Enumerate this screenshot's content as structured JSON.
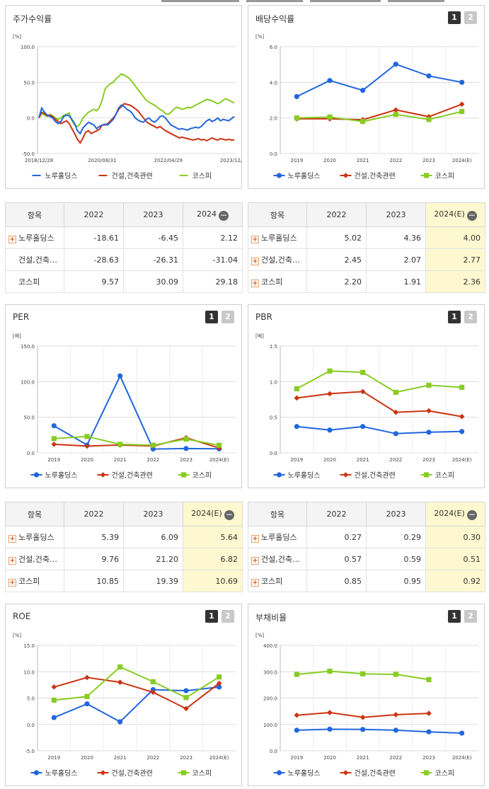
{
  "colors": {
    "s0": "#2266dd",
    "s1": "#cc3311",
    "s2": "#88cc22"
  },
  "markers": [
    "circle",
    "diamond",
    "square"
  ],
  "legend_names": [
    "노루홀딩스",
    "건설,건축관련",
    "코스피"
  ],
  "panel_buttons": [
    "1",
    "2"
  ],
  "tables": {
    "stock_return": {
      "headers": [
        "항목",
        "2022",
        "2023",
        "2024"
      ],
      "rows": [
        {
          "name": "노루홀딩스",
          "v": [
            "-18.61",
            "-6.45",
            "2.12"
          ]
        },
        {
          "name": "건설,건축…",
          "v": [
            "-28.63",
            "-26.31",
            "-31.04"
          ]
        },
        {
          "name": "코스피",
          "v": [
            "9.57",
            "30.09",
            "29.18"
          ]
        }
      ]
    },
    "dividend": {
      "headers": [
        "항목",
        "2022",
        "2023",
        "2024(E)"
      ],
      "rows": [
        {
          "name": "노루홀딩스",
          "v": [
            "5.02",
            "4.36",
            "4.00"
          ]
        },
        {
          "name": "건설,건축…",
          "v": [
            "2.45",
            "2.07",
            "2.77"
          ]
        },
        {
          "name": "코스피",
          "v": [
            "2.20",
            "1.91",
            "2.36"
          ]
        }
      ]
    },
    "per": {
      "headers": [
        "항목",
        "2022",
        "2023",
        "2024(E)"
      ],
      "rows": [
        {
          "name": "노루홀딩스",
          "v": [
            "5.39",
            "6.09",
            "5.64"
          ]
        },
        {
          "name": "건설,건축…",
          "v": [
            "9.76",
            "21.20",
            "6.82"
          ]
        },
        {
          "name": "코스피",
          "v": [
            "10.85",
            "19.39",
            "10.69"
          ]
        }
      ]
    },
    "pbr": {
      "headers": [
        "항목",
        "2022",
        "2023",
        "2024(E)"
      ],
      "rows": [
        {
          "name": "노루홀딩스",
          "v": [
            "0.27",
            "0.29",
            "0.30"
          ]
        },
        {
          "name": "건설,건축…",
          "v": [
            "0.57",
            "0.59",
            "0.51"
          ]
        },
        {
          "name": "코스피",
          "v": [
            "0.85",
            "0.95",
            "0.92"
          ]
        }
      ]
    }
  },
  "chart_data": [
    {
      "id": "stock_return",
      "title": "주가수익률",
      "type": "line",
      "unit": "[%]",
      "ylim": [
        -50,
        100
      ],
      "yticks": [
        "100.0",
        "50.0",
        "0.0",
        "-50.0"
      ],
      "xticks": [
        "2018/12/28",
        "2020/08/31",
        "2022/04/29",
        "2023/12/28"
      ],
      "n": 72,
      "series": [
        {
          "name": "노루홀딩스",
          "values": [
            0,
            14,
            8,
            4,
            2,
            0,
            -5,
            -8,
            -5,
            2,
            4,
            3,
            -2,
            -8,
            -18,
            -22,
            -14,
            -10,
            -6,
            -8,
            -10,
            -15,
            -12,
            -10,
            -9,
            -10,
            -6,
            -2,
            5,
            14,
            18,
            16,
            12,
            10,
            6,
            0,
            -3,
            -5,
            -6,
            -2,
            0,
            -4,
            -6,
            -3,
            2,
            3,
            0,
            -5,
            -10,
            -12,
            -14,
            -16,
            -15,
            -16,
            -17,
            -15,
            -14,
            -13,
            -14,
            -12,
            -8,
            -4,
            -2,
            -5,
            -3,
            0,
            -4,
            -2,
            -3,
            -4,
            -1,
            2
          ]
        },
        {
          "name": "건설,건축관련",
          "values": [
            0,
            8,
            6,
            3,
            4,
            2,
            -2,
            -5,
            -8,
            -6,
            -4,
            -8,
            -15,
            -22,
            -30,
            -35,
            -28,
            -20,
            -18,
            -22,
            -20,
            -18,
            -16,
            -10,
            -10,
            -8,
            -4,
            0,
            5,
            12,
            16,
            20,
            19,
            18,
            16,
            13,
            10,
            5,
            0,
            -5,
            -8,
            -10,
            -12,
            -14,
            -12,
            -15,
            -18,
            -20,
            -22,
            -24,
            -26,
            -28,
            -27,
            -28,
            -29,
            -30,
            -31,
            -30,
            -29,
            -31,
            -30,
            -32,
            -30,
            -28,
            -30,
            -31,
            -29,
            -30,
            -31,
            -30,
            -31,
            -31
          ]
        },
        {
          "name": "코스피",
          "values": [
            0,
            6,
            4,
            2,
            5,
            3,
            0,
            -2,
            0,
            4,
            5,
            7,
            -4,
            -10,
            -12,
            -8,
            0,
            4,
            8,
            10,
            12,
            10,
            15,
            25,
            40,
            45,
            48,
            50,
            55,
            58,
            62,
            60,
            58,
            55,
            50,
            45,
            40,
            35,
            30,
            25,
            22,
            20,
            18,
            15,
            12,
            10,
            6,
            5,
            8,
            12,
            15,
            14,
            12,
            13,
            15,
            14,
            16,
            18,
            20,
            22,
            24,
            26,
            25,
            24,
            22,
            20,
            22,
            25,
            27,
            25,
            23,
            21
          ]
        }
      ]
    },
    {
      "id": "dividend",
      "title": "배당수익률",
      "type": "line",
      "unit": "[%]",
      "ylim": [
        0,
        6
      ],
      "yticks": [
        "6.0",
        "4.0",
        "2.0",
        "0.0"
      ],
      "categories": [
        "2019",
        "2020",
        "2021",
        "2022",
        "2023",
        "2024(E)"
      ],
      "series": [
        {
          "name": "노루홀딩스",
          "values": [
            3.2,
            4.1,
            3.55,
            5.02,
            4.36,
            4.0
          ]
        },
        {
          "name": "건설,건축관련",
          "values": [
            1.95,
            1.95,
            1.9,
            2.45,
            2.07,
            2.77
          ]
        },
        {
          "name": "코스피",
          "values": [
            2.0,
            2.05,
            1.8,
            2.2,
            1.91,
            2.36
          ]
        }
      ]
    },
    {
      "id": "per",
      "title": "PER",
      "type": "line",
      "unit": "[배]",
      "ylim": [
        0,
        150
      ],
      "yticks": [
        "150.0",
        "100.0",
        "50.0",
        "0.0"
      ],
      "categories": [
        "2019",
        "2020",
        "2021",
        "2022",
        "2023",
        "2024(E)"
      ],
      "series": [
        {
          "name": "노루홀딩스",
          "values": [
            38,
            11,
            108,
            5.39,
            6.09,
            5.64
          ]
        },
        {
          "name": "건설,건축관련",
          "values": [
            12,
            9.5,
            11,
            9.76,
            21.2,
            6.82
          ]
        },
        {
          "name": "코스피",
          "values": [
            20,
            23,
            12,
            10.85,
            19.39,
            10.69
          ]
        }
      ]
    },
    {
      "id": "pbr",
      "title": "PBR",
      "type": "line",
      "unit": "[배]",
      "ylim": [
        0,
        1.5
      ],
      "yticks": [
        "1.5",
        "1.0",
        "0.5",
        "0.0"
      ],
      "categories": [
        "2019",
        "2020",
        "2021",
        "2022",
        "2023",
        "2024(E)"
      ],
      "series": [
        {
          "name": "노루홀딩스",
          "values": [
            0.37,
            0.32,
            0.37,
            0.27,
            0.29,
            0.3
          ]
        },
        {
          "name": "건설,건축관련",
          "values": [
            0.77,
            0.83,
            0.86,
            0.57,
            0.59,
            0.51
          ]
        },
        {
          "name": "코스피",
          "values": [
            0.9,
            1.15,
            1.13,
            0.85,
            0.95,
            0.92
          ]
        }
      ]
    },
    {
      "id": "roe",
      "title": "ROE",
      "type": "line",
      "unit": "[%]",
      "ylim": [
        -5,
        15
      ],
      "yticks": [
        "15.0",
        "10.0",
        "5.0",
        "0.0",
        "-5.0"
      ],
      "categories": [
        "2019",
        "2020",
        "2021",
        "2022",
        "2023",
        "2024(E)"
      ],
      "series": [
        {
          "name": "노루홀딩스",
          "values": [
            1.3,
            3.9,
            0.5,
            6.6,
            6.4,
            7.1
          ]
        },
        {
          "name": "건설,건축관련",
          "values": [
            7.1,
            8.9,
            8.0,
            6.1,
            3.0,
            7.8
          ]
        },
        {
          "name": "코스피",
          "values": [
            4.6,
            5.3,
            10.9,
            8.1,
            5.1,
            9.0
          ]
        }
      ]
    },
    {
      "id": "debt",
      "title": "부채비율",
      "type": "line",
      "unit": "[%]",
      "ylim": [
        0,
        400
      ],
      "yticks": [
        "400.0",
        "300.0",
        "200.0",
        "100.0",
        "0.0"
      ],
      "categories": [
        "2019",
        "2020",
        "2021",
        "2022",
        "2023",
        "2024(E)"
      ],
      "series": [
        {
          "name": "노루홀딩스",
          "values": [
            78,
            82,
            81,
            78,
            72,
            67
          ]
        },
        {
          "name": "건설,건축관련",
          "values": [
            135,
            145,
            127,
            137,
            142,
            null
          ]
        },
        {
          "name": "코스피",
          "values": [
            290,
            302,
            292,
            290,
            270,
            null
          ]
        }
      ]
    }
  ]
}
